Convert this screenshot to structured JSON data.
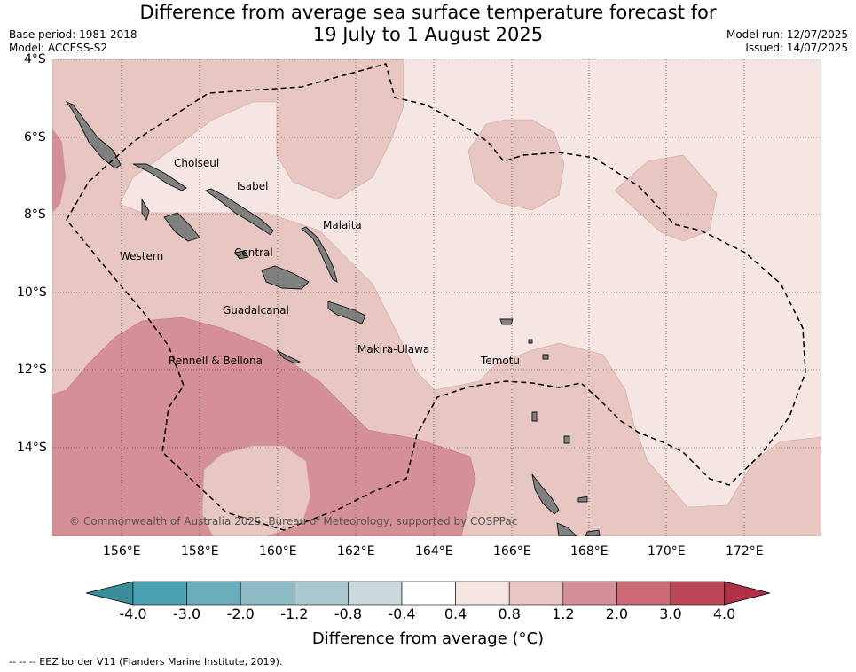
{
  "title_line1": "Difference from average sea surface temperature forecast for",
  "title_line2": "19 July to 1 August 2025",
  "base_period": "Base period: 1981-2018",
  "model": "Model: ACCESS-S2",
  "model_run": "Model run: 12/07/2025",
  "issued": "Issued: 14/07/2025",
  "lat_ticks": [
    "4°S",
    "6°S",
    "8°S",
    "10°S",
    "12°S",
    "14°S"
  ],
  "lon_ticks": [
    "156°E",
    "158°E",
    "160°E",
    "162°E",
    "164°E",
    "166°E",
    "168°E",
    "170°E",
    "172°E"
  ],
  "places": {
    "choiseul": "Choiseul",
    "isabel": "Isabel",
    "malaita": "Malaita",
    "western": "Western",
    "central": "Central",
    "guadalcanal": "Guadalcanal",
    "makira": "Makira-Ulawa",
    "temotu": "Temotu",
    "rennell": "Rennell & Bellona"
  },
  "credit": "© Commonwealth of Australia 2025, Bureau of Meteorology, supported by COSPPac",
  "colorbar": {
    "labels": [
      "-4.0",
      "-3.0",
      "-2.0",
      "-1.2",
      "-0.8",
      "-0.4",
      "0.4",
      "0.8",
      "1.2",
      "2.0",
      "3.0",
      "4.0"
    ],
    "colors": [
      "#48a0b0",
      "#6aaebb",
      "#8ebcc6",
      "#aac8cd",
      "#c9d9dc",
      "#ffffff",
      "#f5e6e4",
      "#e8c7c3",
      "#d58f96",
      "#c96a75",
      "#bd4656"
    ],
    "under_color": "#3a8c99",
    "over_color": "#b03048",
    "title": "Difference from average (°C)"
  },
  "legend_text": "-- -- -- EEZ border V11 (Flanders Marine Institute, 2019).",
  "colors": {
    "anom_0_4_0_8": "#f5e6e4",
    "anom_0_8_1_2": "#e8c7c3",
    "anom_1_2_2_0": "#d58f96",
    "land": "#808080"
  }
}
